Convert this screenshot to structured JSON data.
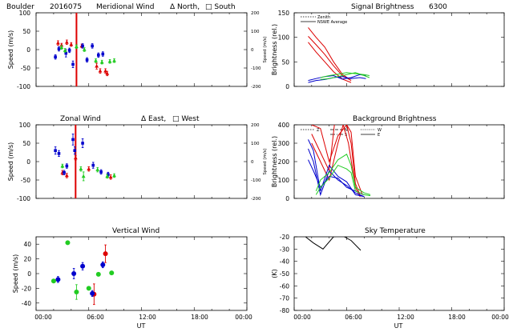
{
  "chart_data": [
    {
      "id": "p1",
      "type": "scatter",
      "title_parts": [
        "Boulder",
        "2016075",
        "Meridional Wind",
        "Δ North,",
        "□ South"
      ],
      "ylabel": "Speed (m/s)",
      "ylabel_right": "Speed (m/s)",
      "ylim": [
        -100,
        100
      ],
      "yticks": [
        "100",
        "50",
        "0",
        "-50",
        "-100"
      ],
      "ylim_right": [
        -200,
        200
      ],
      "yticks_right": [
        "200",
        "100",
        "0",
        "-100",
        "-200"
      ],
      "xlim": [
        0,
        24
      ],
      "xticks": [],
      "vline": {
        "x": 4.6,
        "color": "#dd0000"
      },
      "series": [
        {
          "name": "red",
          "color": "#dd0000",
          "marker": "tri",
          "points": [
            [
              2.5,
              18,
              6
            ],
            [
              2.9,
              12,
              5
            ],
            [
              3.5,
              20,
              6
            ],
            [
              4.0,
              14,
              5
            ],
            [
              5.2,
              10,
              5
            ],
            [
              6.9,
              -45,
              8
            ],
            [
              7.3,
              -58,
              6
            ],
            [
              7.9,
              -58,
              6
            ],
            [
              8.1,
              -65,
              6
            ]
          ]
        },
        {
          "name": "blue",
          "color": "#0000cc",
          "marker": "sq",
          "points": [
            [
              2.2,
              -20,
              6
            ],
            [
              2.6,
              2,
              6
            ],
            [
              3.4,
              -10,
              10
            ],
            [
              3.8,
              -2,
              6
            ],
            [
              4.2,
              -40,
              9
            ],
            [
              5.3,
              10,
              6
            ],
            [
              5.8,
              -28,
              6
            ],
            [
              6.4,
              10,
              6
            ],
            [
              7.1,
              -15,
              6
            ],
            [
              7.6,
              -12,
              6
            ]
          ]
        },
        {
          "name": "green",
          "color": "#22cc22",
          "marker": "tri",
          "points": [
            [
              2.9,
              6,
              5
            ],
            [
              3.3,
              -2,
              5
            ],
            [
              4.6,
              8,
              5
            ],
            [
              5.5,
              0,
              5
            ],
            [
              6.8,
              -30,
              5
            ],
            [
              7.5,
              -34,
              5
            ],
            [
              8.4,
              -32,
              5
            ],
            [
              8.9,
              -30,
              5
            ]
          ]
        }
      ]
    },
    {
      "id": "p2",
      "type": "scatter",
      "title_parts": [
        "Zonal Wind",
        "Δ East,",
        "□ West"
      ],
      "ylabel": "Speed (m/s)",
      "ylabel_right": "Speed (m/s)",
      "ylim": [
        -100,
        100
      ],
      "yticks": [
        "100",
        "50",
        "0",
        "-50",
        "-100"
      ],
      "ylim_right": [
        -200,
        200
      ],
      "yticks_right": [
        "200",
        "100",
        "0",
        "-100",
        "-200"
      ],
      "xlim": [
        0,
        24
      ],
      "xticks": [],
      "vline": {
        "x": 4.5,
        "color": "#dd0000"
      },
      "series": [
        {
          "name": "red",
          "color": "#dd0000",
          "marker": "tri",
          "points": [
            [
              3.0,
              -30,
              6
            ],
            [
              3.5,
              -38,
              6
            ],
            [
              4.5,
              10,
              6
            ],
            [
              6.0,
              -20,
              6
            ],
            [
              8.5,
              -42,
              6
            ]
          ]
        },
        {
          "name": "blue",
          "color": "#0000cc",
          "marker": "sq",
          "points": [
            [
              2.2,
              30,
              10
            ],
            [
              2.6,
              22,
              8
            ],
            [
              3.2,
              -30,
              6
            ],
            [
              3.5,
              -12,
              6
            ],
            [
              4.2,
              60,
              15
            ],
            [
              4.4,
              30,
              10
            ],
            [
              5.3,
              50,
              12
            ],
            [
              6.5,
              -10,
              8
            ],
            [
              7.4,
              -28,
              6
            ],
            [
              8.2,
              -35,
              6
            ]
          ]
        },
        {
          "name": "green",
          "color": "#22cc22",
          "marker": "tri",
          "points": [
            [
              3.0,
              -12,
              5
            ],
            [
              5.1,
              -20,
              6
            ],
            [
              5.4,
              -40,
              12
            ],
            [
              7.0,
              -22,
              6
            ],
            [
              8.1,
              -40,
              5
            ],
            [
              8.9,
              -38,
              5
            ]
          ]
        }
      ]
    },
    {
      "id": "p3",
      "type": "scatter",
      "title_parts": [
        "Vertical Wind"
      ],
      "ylabel": "Speed (m/s)",
      "ylim": [
        -50,
        50
      ],
      "yticks": [
        "40",
        "20",
        "0",
        "-20",
        "-40"
      ],
      "ytick_values": [
        40,
        20,
        0,
        -20,
        -40
      ],
      "xlim": [
        0,
        24
      ],
      "xticks": [
        "00:00",
        "06:00",
        "12:00",
        "18:00",
        "00:00"
      ],
      "xlabel": "UT",
      "series": [
        {
          "name": "red",
          "color": "#dd0000",
          "marker": "dot",
          "points": [
            [
              6.6,
              -28,
              14
            ],
            [
              7.9,
              27,
              12
            ]
          ]
        },
        {
          "name": "blue",
          "color": "#0000cc",
          "marker": "dot",
          "points": [
            [
              2.5,
              -8,
              4
            ],
            [
              4.3,
              0,
              7
            ],
            [
              5.3,
              10,
              5
            ],
            [
              6.4,
              -27,
              4
            ],
            [
              7.6,
              12,
              4
            ]
          ]
        },
        {
          "name": "green",
          "color": "#22cc22",
          "marker": "dot",
          "points": [
            [
              2.0,
              -10,
              0
            ],
            [
              3.6,
              42,
              0
            ],
            [
              4.6,
              -25,
              10
            ],
            [
              6.0,
              -20,
              0
            ],
            [
              7.1,
              -1,
              0
            ],
            [
              8.6,
              1,
              0
            ]
          ]
        }
      ]
    },
    {
      "id": "p4",
      "type": "line",
      "title_parts": [
        "Signal Brightness",
        "6300"
      ],
      "ylabel": "Brightness (rel.)",
      "ylim": [
        0,
        150
      ],
      "yticks": [
        "150",
        "100",
        "50",
        "0"
      ],
      "ytick_values": [
        150,
        100,
        50,
        0
      ],
      "xlim": [
        0,
        24
      ],
      "xticks": [],
      "legend": [
        "Zenith",
        "NSWE Average"
      ],
      "series": [
        {
          "name": "red-1",
          "color": "#dd0000",
          "x": [
            1.6,
            2.5,
            3.5,
            4.5,
            5.5,
            6.5
          ],
          "y": [
            120,
            100,
            80,
            50,
            25,
            12
          ]
        },
        {
          "name": "red-2",
          "color": "#dd0000",
          "x": [
            1.6,
            2.5,
            3.5,
            4.5,
            5.5,
            6.5
          ],
          "y": [
            102,
            85,
            65,
            42,
            22,
            12
          ]
        },
        {
          "name": "red-3",
          "color": "#dd0000",
          "x": [
            1.6,
            2.5,
            3.5,
            4.5,
            5.5,
            6.5
          ],
          "y": [
            90,
            70,
            50,
            30,
            15,
            8
          ]
        },
        {
          "name": "blue-1",
          "color": "#0000cc",
          "x": [
            1.6,
            2.5,
            3.5,
            4.5,
            5.5,
            6.5,
            7.5,
            8.2
          ],
          "y": [
            12,
            16,
            20,
            22,
            15,
            18,
            24,
            22
          ]
        },
        {
          "name": "blue-2",
          "color": "#0000cc",
          "x": [
            1.6,
            2.5,
            3.5,
            4.5,
            5.5,
            6.5,
            7.5,
            8.2
          ],
          "y": [
            8,
            12,
            14,
            18,
            20,
            16,
            18,
            16
          ]
        },
        {
          "name": "green-1",
          "color": "#22cc22",
          "x": [
            3.0,
            4.0,
            5.0,
            6.0,
            7.0,
            8.0,
            8.6
          ],
          "y": [
            18,
            22,
            25,
            28,
            26,
            24,
            22
          ]
        },
        {
          "name": "green-2",
          "color": "#22cc22",
          "x": [
            3.0,
            4.0,
            5.0,
            6.0,
            7.0,
            8.0,
            8.6
          ],
          "y": [
            14,
            16,
            20,
            24,
            28,
            22,
            18
          ]
        }
      ]
    },
    {
      "id": "p5",
      "type": "line",
      "title_parts": [
        "Background Brightness"
      ],
      "ylabel": "Brightness (rel.)",
      "ylim": [
        0,
        400
      ],
      "yticks": [
        "400",
        "300",
        "200",
        "100",
        "0"
      ],
      "ytick_values": [
        400,
        300,
        200,
        100,
        0
      ],
      "xlim": [
        0,
        24
      ],
      "xticks": [],
      "legend": [
        "Z",
        "N",
        "S",
        "W",
        "E"
      ],
      "series": [
        {
          "name": "red-1",
          "color": "#dd0000",
          "x": [
            2.0,
            3.0,
            4.0,
            5.0,
            6.0,
            6.5,
            7.0,
            7.8
          ],
          "y": [
            400,
            380,
            200,
            340,
            400,
            360,
            120,
            20
          ]
        },
        {
          "name": "red-2",
          "color": "#dd0000",
          "x": [
            2.0,
            3.0,
            4.0,
            4.6,
            5.0,
            6.0,
            6.5,
            7.0,
            7.6
          ],
          "y": [
            350,
            250,
            150,
            400,
            420,
            400,
            300,
            80,
            10
          ]
        },
        {
          "name": "red-3",
          "color": "#dd0000",
          "x": [
            2.0,
            3.0,
            4.0,
            5.0,
            5.6,
            6.2,
            7.0,
            7.5
          ],
          "y": [
            300,
            200,
            100,
            300,
            400,
            300,
            60,
            10
          ]
        },
        {
          "name": "blue-1",
          "color": "#0000cc",
          "x": [
            1.6,
            2.2,
            3.0,
            4.0,
            5.0,
            6.0,
            7.0,
            8.0
          ],
          "y": [
            320,
            260,
            40,
            180,
            120,
            90,
            20,
            10
          ]
        },
        {
          "name": "blue-2",
          "color": "#0000cc",
          "x": [
            1.6,
            2.2,
            3.0,
            4.0,
            5.0,
            6.0,
            7.0,
            8.0
          ],
          "y": [
            270,
            200,
            20,
            150,
            100,
            70,
            30,
            10
          ]
        },
        {
          "name": "blue-3",
          "color": "#0000cc",
          "x": [
            1.6,
            2.2,
            3.0,
            4.0,
            5.0,
            6.0,
            7.0,
            8.0
          ],
          "y": [
            210,
            150,
            60,
            120,
            110,
            60,
            40,
            20
          ]
        },
        {
          "name": "green-1",
          "color": "#22cc22",
          "x": [
            2.5,
            3.0,
            4.0,
            5.0,
            6.0,
            6.5,
            7.0,
            8.0,
            8.7
          ],
          "y": [
            40,
            100,
            140,
            210,
            240,
            180,
            60,
            30,
            20
          ]
        },
        {
          "name": "green-2",
          "color": "#22cc22",
          "x": [
            2.5,
            3.0,
            4.0,
            5.0,
            6.0,
            6.5,
            7.0,
            8.0,
            8.7
          ],
          "y": [
            20,
            60,
            110,
            180,
            160,
            140,
            40,
            20,
            15
          ]
        }
      ]
    },
    {
      "id": "p6",
      "type": "line",
      "title_parts": [
        "Sky Temperature"
      ],
      "ylabel": "(K)",
      "ylim": [
        -80,
        -20
      ],
      "yticks": [
        "-20",
        "-30",
        "-40",
        "-50",
        "-60",
        "-70",
        "-80"
      ],
      "ytick_values": [
        -20,
        -30,
        -40,
        -50,
        -60,
        -70,
        -80
      ],
      "xlim": [
        0,
        24
      ],
      "xticks": [
        "00:00",
        "06:00",
        "12:00",
        "18:00",
        "00:00"
      ],
      "xlabel": "UT",
      "series": [
        {
          "name": "black",
          "color": "#000000",
          "x": [
            1.3,
            2.2,
            3.3,
            4.5,
            5.5,
            6.5,
            7.6
          ],
          "y": [
            -20,
            -25,
            -30,
            -20,
            -19,
            -23,
            -31
          ]
        }
      ]
    }
  ]
}
